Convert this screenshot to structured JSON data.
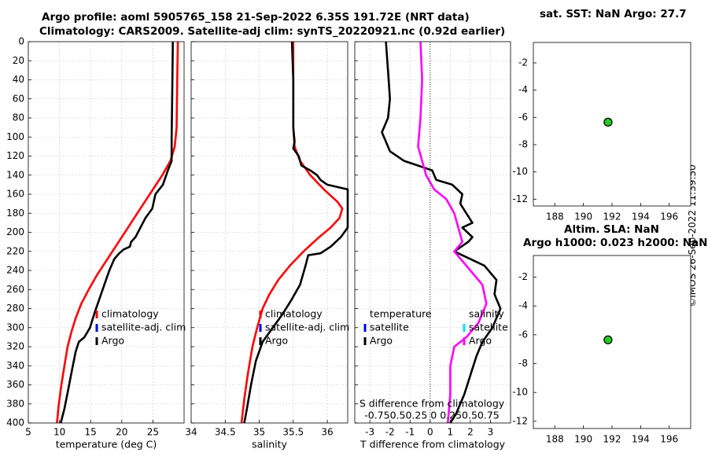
{
  "titles": {
    "line1": "Argo profile: aoml 5905765_158 21-Sep-2022 6.35S 191.72E (NRT data)",
    "line2": "Climatology: CARS2009. Satellite-adj clim: synTS_20220921.nc (0.92d earlier)",
    "sst": "sat. SST: NaN Argo: 27.7",
    "sla1": "Altim. SLA: NaN",
    "sla2": "Argo h1000: 0.023 h2000: NaN",
    "stamp": "©IMOS 26-Sep-2022 11:39:50"
  },
  "colors": {
    "clim": "#ff0000",
    "sat": "#0000ff",
    "argo": "#000000",
    "tdiff": "#000000",
    "sdiff": "#ff00ff",
    "sat_s": "#00e5ee",
    "marker": "#22cc22"
  },
  "chart_data": [
    {
      "type": "line",
      "name": "temperature",
      "xlabel": "temperature (deg C)",
      "ylabel": "",
      "xlim": [
        5,
        30
      ],
      "ylim": [
        400,
        0
      ],
      "grid": true,
      "xticks": [
        5,
        10,
        15,
        20,
        25
      ],
      "yticks": [
        0,
        20,
        40,
        60,
        80,
        100,
        120,
        140,
        160,
        180,
        200,
        220,
        240,
        260,
        280,
        300,
        320,
        340,
        360,
        380,
        400
      ],
      "legend": [
        "climatology",
        "satellite-adj. clim",
        "Argo"
      ],
      "series": [
        {
          "name": "climatology",
          "points": [
            [
              29.0,
              0
            ],
            [
              28.9,
              40
            ],
            [
              28.8,
              90
            ],
            [
              28.5,
              110
            ],
            [
              27.8,
              125
            ],
            [
              26.5,
              140
            ],
            [
              25.0,
              155
            ],
            [
              23.5,
              170
            ],
            [
              22.0,
              185
            ],
            [
              20.5,
              200
            ],
            [
              19.0,
              215
            ],
            [
              17.5,
              230
            ],
            [
              16.0,
              245
            ],
            [
              14.7,
              260
            ],
            [
              13.5,
              275
            ],
            [
              12.6,
              290
            ],
            [
              11.9,
              305
            ],
            [
              11.3,
              320
            ],
            [
              10.8,
              340
            ],
            [
              10.3,
              360
            ],
            [
              9.9,
              380
            ],
            [
              9.6,
              400
            ]
          ]
        },
        {
          "name": "Argo",
          "points": [
            [
              28.2,
              0
            ],
            [
              28.1,
              50
            ],
            [
              28.0,
              100
            ],
            [
              28.0,
              125
            ],
            [
              27.4,
              135
            ],
            [
              26.6,
              150
            ],
            [
              25.4,
              160
            ],
            [
              24.9,
              175
            ],
            [
              23.8,
              185
            ],
            [
              23.0,
              195
            ],
            [
              22.2,
              205
            ],
            [
              21.5,
              210
            ],
            [
              21.3,
              215
            ],
            [
              20.3,
              218
            ],
            [
              19.6,
              222
            ],
            [
              18.8,
              228
            ],
            [
              18.0,
              240
            ],
            [
              17.2,
              255
            ],
            [
              16.4,
              270
            ],
            [
              15.6,
              285
            ],
            [
              14.9,
              300
            ],
            [
              14.0,
              310
            ],
            [
              13.1,
              315
            ],
            [
              12.6,
              325
            ],
            [
              12.0,
              345
            ],
            [
              11.4,
              365
            ],
            [
              10.8,
              385
            ],
            [
              10.2,
              400
            ]
          ]
        }
      ]
    },
    {
      "type": "line",
      "name": "salinity",
      "xlabel": "salinity",
      "ylabel": "",
      "xlim": [
        34,
        36.3
      ],
      "ylim": [
        400,
        0
      ],
      "grid": true,
      "xticks": [
        34,
        34.5,
        35,
        35.5,
        36
      ],
      "legend": [
        "climatology",
        "satellite-adj. clim",
        "Argo"
      ],
      "series": [
        {
          "name": "climatology",
          "points": [
            [
              35.5,
              0
            ],
            [
              35.5,
              40
            ],
            [
              35.5,
              90
            ],
            [
              35.52,
              110
            ],
            [
              35.6,
              125
            ],
            [
              35.75,
              140
            ],
            [
              35.95,
              155
            ],
            [
              36.15,
              168
            ],
            [
              36.22,
              175
            ],
            [
              36.18,
              185
            ],
            [
              36.05,
              195
            ],
            [
              35.88,
              205
            ],
            [
              35.65,
              220
            ],
            [
              35.45,
              235
            ],
            [
              35.28,
              250
            ],
            [
              35.15,
              265
            ],
            [
              35.05,
              280
            ],
            [
              34.97,
              300
            ],
            [
              34.9,
              320
            ],
            [
              34.83,
              350
            ],
            [
              34.78,
              375
            ],
            [
              34.74,
              400
            ]
          ]
        },
        {
          "name": "Argo",
          "points": [
            [
              35.48,
              0
            ],
            [
              35.5,
              40
            ],
            [
              35.5,
              90
            ],
            [
              35.52,
              105
            ],
            [
              35.5,
              112
            ],
            [
              35.58,
              120
            ],
            [
              35.62,
              130
            ],
            [
              35.75,
              135
            ],
            [
              35.85,
              140
            ],
            [
              35.9,
              145
            ],
            [
              36.0,
              150
            ],
            [
              36.3,
              155
            ],
            [
              36.3,
              195
            ],
            [
              36.2,
              205
            ],
            [
              36.05,
              215
            ],
            [
              35.9,
              222
            ],
            [
              35.72,
              224
            ],
            [
              35.68,
              235
            ],
            [
              35.6,
              255
            ],
            [
              35.48,
              270
            ],
            [
              35.35,
              285
            ],
            [
              35.2,
              300
            ],
            [
              35.05,
              315
            ],
            [
              34.95,
              335
            ],
            [
              34.88,
              360
            ],
            [
              34.82,
              385
            ],
            [
              34.78,
              400
            ]
          ]
        }
      ]
    },
    {
      "type": "line",
      "name": "difference from climatology",
      "xlabel": "T difference from climatology",
      "xlim": [
        -3.75,
        4.0
      ],
      "ylim": [
        400,
        0
      ],
      "grid": true,
      "xticks": [
        -3,
        -2,
        -1,
        0,
        1,
        2,
        3
      ],
      "top_axis_label": "S difference from climatology",
      "top_ticks": "-0.750.50.25 0 0.250.50.75",
      "legend_left": [
        "temperature",
        "satellite",
        "Argo"
      ],
      "legend_right": [
        "salinity",
        "satellite",
        "Argo"
      ],
      "series": [
        {
          "name": "T difference",
          "points": [
            [
              -2.2,
              0
            ],
            [
              -2.1,
              30
            ],
            [
              -2.0,
              60
            ],
            [
              -2.1,
              80
            ],
            [
              -2.4,
              95
            ],
            [
              -2.2,
              105
            ],
            [
              -2.0,
              115
            ],
            [
              -1.3,
              125
            ],
            [
              -0.6,
              130
            ],
            [
              0.1,
              135
            ],
            [
              0.3,
              145
            ],
            [
              1.1,
              150
            ],
            [
              1.6,
              160
            ],
            [
              1.5,
              170
            ],
            [
              1.8,
              180
            ],
            [
              2.1,
              190
            ],
            [
              1.6,
              195
            ],
            [
              2.1,
              205
            ],
            [
              1.9,
              210
            ],
            [
              1.2,
              220
            ],
            [
              2.7,
              235
            ],
            [
              3.3,
              250
            ],
            [
              3.2,
              265
            ],
            [
              3.5,
              280
            ],
            [
              3.1,
              300
            ],
            [
              2.6,
              315
            ],
            [
              2.3,
              330
            ],
            [
              2.0,
              350
            ],
            [
              1.7,
              370
            ],
            [
              1.3,
              390
            ],
            [
              1.0,
              400
            ]
          ]
        },
        {
          "name": "S difference",
          "points": [
            [
              -0.12,
              0
            ],
            [
              -0.1,
              40
            ],
            [
              -0.12,
              80
            ],
            [
              -0.15,
              110
            ],
            [
              -0.1,
              125
            ],
            [
              -0.05,
              140
            ],
            [
              0.05,
              155
            ],
            [
              0.2,
              165
            ],
            [
              0.3,
              180
            ],
            [
              0.35,
              195
            ],
            [
              0.4,
              210
            ],
            [
              0.3,
              220
            ],
            [
              0.5,
              240
            ],
            [
              0.65,
              255
            ],
            [
              0.7,
              275
            ],
            [
              0.6,
              295
            ],
            [
              0.45,
              310
            ],
            [
              0.3,
              320
            ],
            [
              0.25,
              340
            ],
            [
              0.25,
              370
            ],
            [
              0.22,
              400
            ]
          ]
        }
      ]
    },
    {
      "type": "scatter",
      "name": "sst-map",
      "xlim": [
        186.5,
        197.5
      ],
      "ylim": [
        -12.5,
        -0.5
      ],
      "xticks": [
        188,
        190,
        192,
        194,
        196
      ],
      "yticks": [
        -2,
        -4,
        -6,
        -8,
        -10,
        -12
      ],
      "points": [
        [
          191.72,
          -6.35
        ]
      ]
    },
    {
      "type": "scatter",
      "name": "sla-map",
      "xlim": [
        186.5,
        197.5
      ],
      "ylim": [
        -12.5,
        -0.5
      ],
      "xticks": [
        188,
        190,
        192,
        194,
        196
      ],
      "yticks": [
        -2,
        -4,
        -6,
        -8,
        -10,
        -12
      ],
      "points": [
        [
          191.72,
          -6.35
        ]
      ]
    }
  ]
}
